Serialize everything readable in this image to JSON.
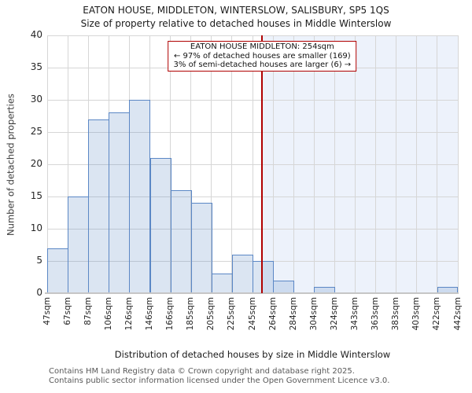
{
  "title": {
    "line1": "EATON HOUSE, MIDDLETON, WINTERSLOW, SALISBURY, SP5 1QS",
    "line2": "Size of property relative to detached houses in Middle Winterslow"
  },
  "annotation": {
    "line1": "EATON HOUSE MIDDLETON: 254sqm",
    "line2": "← 97% of detached houses are smaller (169)",
    "line3": "3% of semi-detached houses are larger (6) →"
  },
  "chart_data": {
    "type": "bar",
    "title": "EATON HOUSE, MIDDLETON, WINTERSLOW, SALISBURY, SP5 1QS",
    "subtitle": "Size of property relative to detached houses in Middle Winterslow",
    "xlabel": "Distribution of detached houses by size in Middle Winterslow",
    "ylabel": "Number of detached properties",
    "tick_labels": [
      "47sqm",
      "67sqm",
      "87sqm",
      "106sqm",
      "126sqm",
      "146sqm",
      "166sqm",
      "185sqm",
      "205sqm",
      "225sqm",
      "245sqm",
      "264sqm",
      "284sqm",
      "304sqm",
      "324sqm",
      "343sqm",
      "363sqm",
      "383sqm",
      "403sqm",
      "422sqm",
      "442sqm"
    ],
    "bin_edges_sqm": [
      47,
      67,
      87,
      106,
      126,
      146,
      166,
      185,
      205,
      225,
      245,
      264,
      284,
      304,
      324,
      343,
      363,
      383,
      403,
      422,
      442
    ],
    "counts": [
      7,
      15,
      27,
      28,
      30,
      21,
      16,
      14,
      3,
      6,
      5,
      2,
      0,
      1,
      0,
      0,
      0,
      0,
      0,
      1
    ],
    "ylim": [
      0,
      40
    ],
    "ytick_step": 5,
    "grid": true,
    "marker": {
      "value_sqm": 254,
      "color": "#b00000"
    },
    "shaded_region": {
      "from_sqm": 254,
      "to_sqm": 442,
      "color": "#edf2fb"
    },
    "bar_fill": "rgba(91,135,197,0.22)",
    "bar_border": "#5b87c5"
  },
  "footer": {
    "line1": "Contains HM Land Registry data © Crown copyright and database right 2025.",
    "line2": "Contains public sector information licensed under the Open Government Licence v3.0."
  }
}
